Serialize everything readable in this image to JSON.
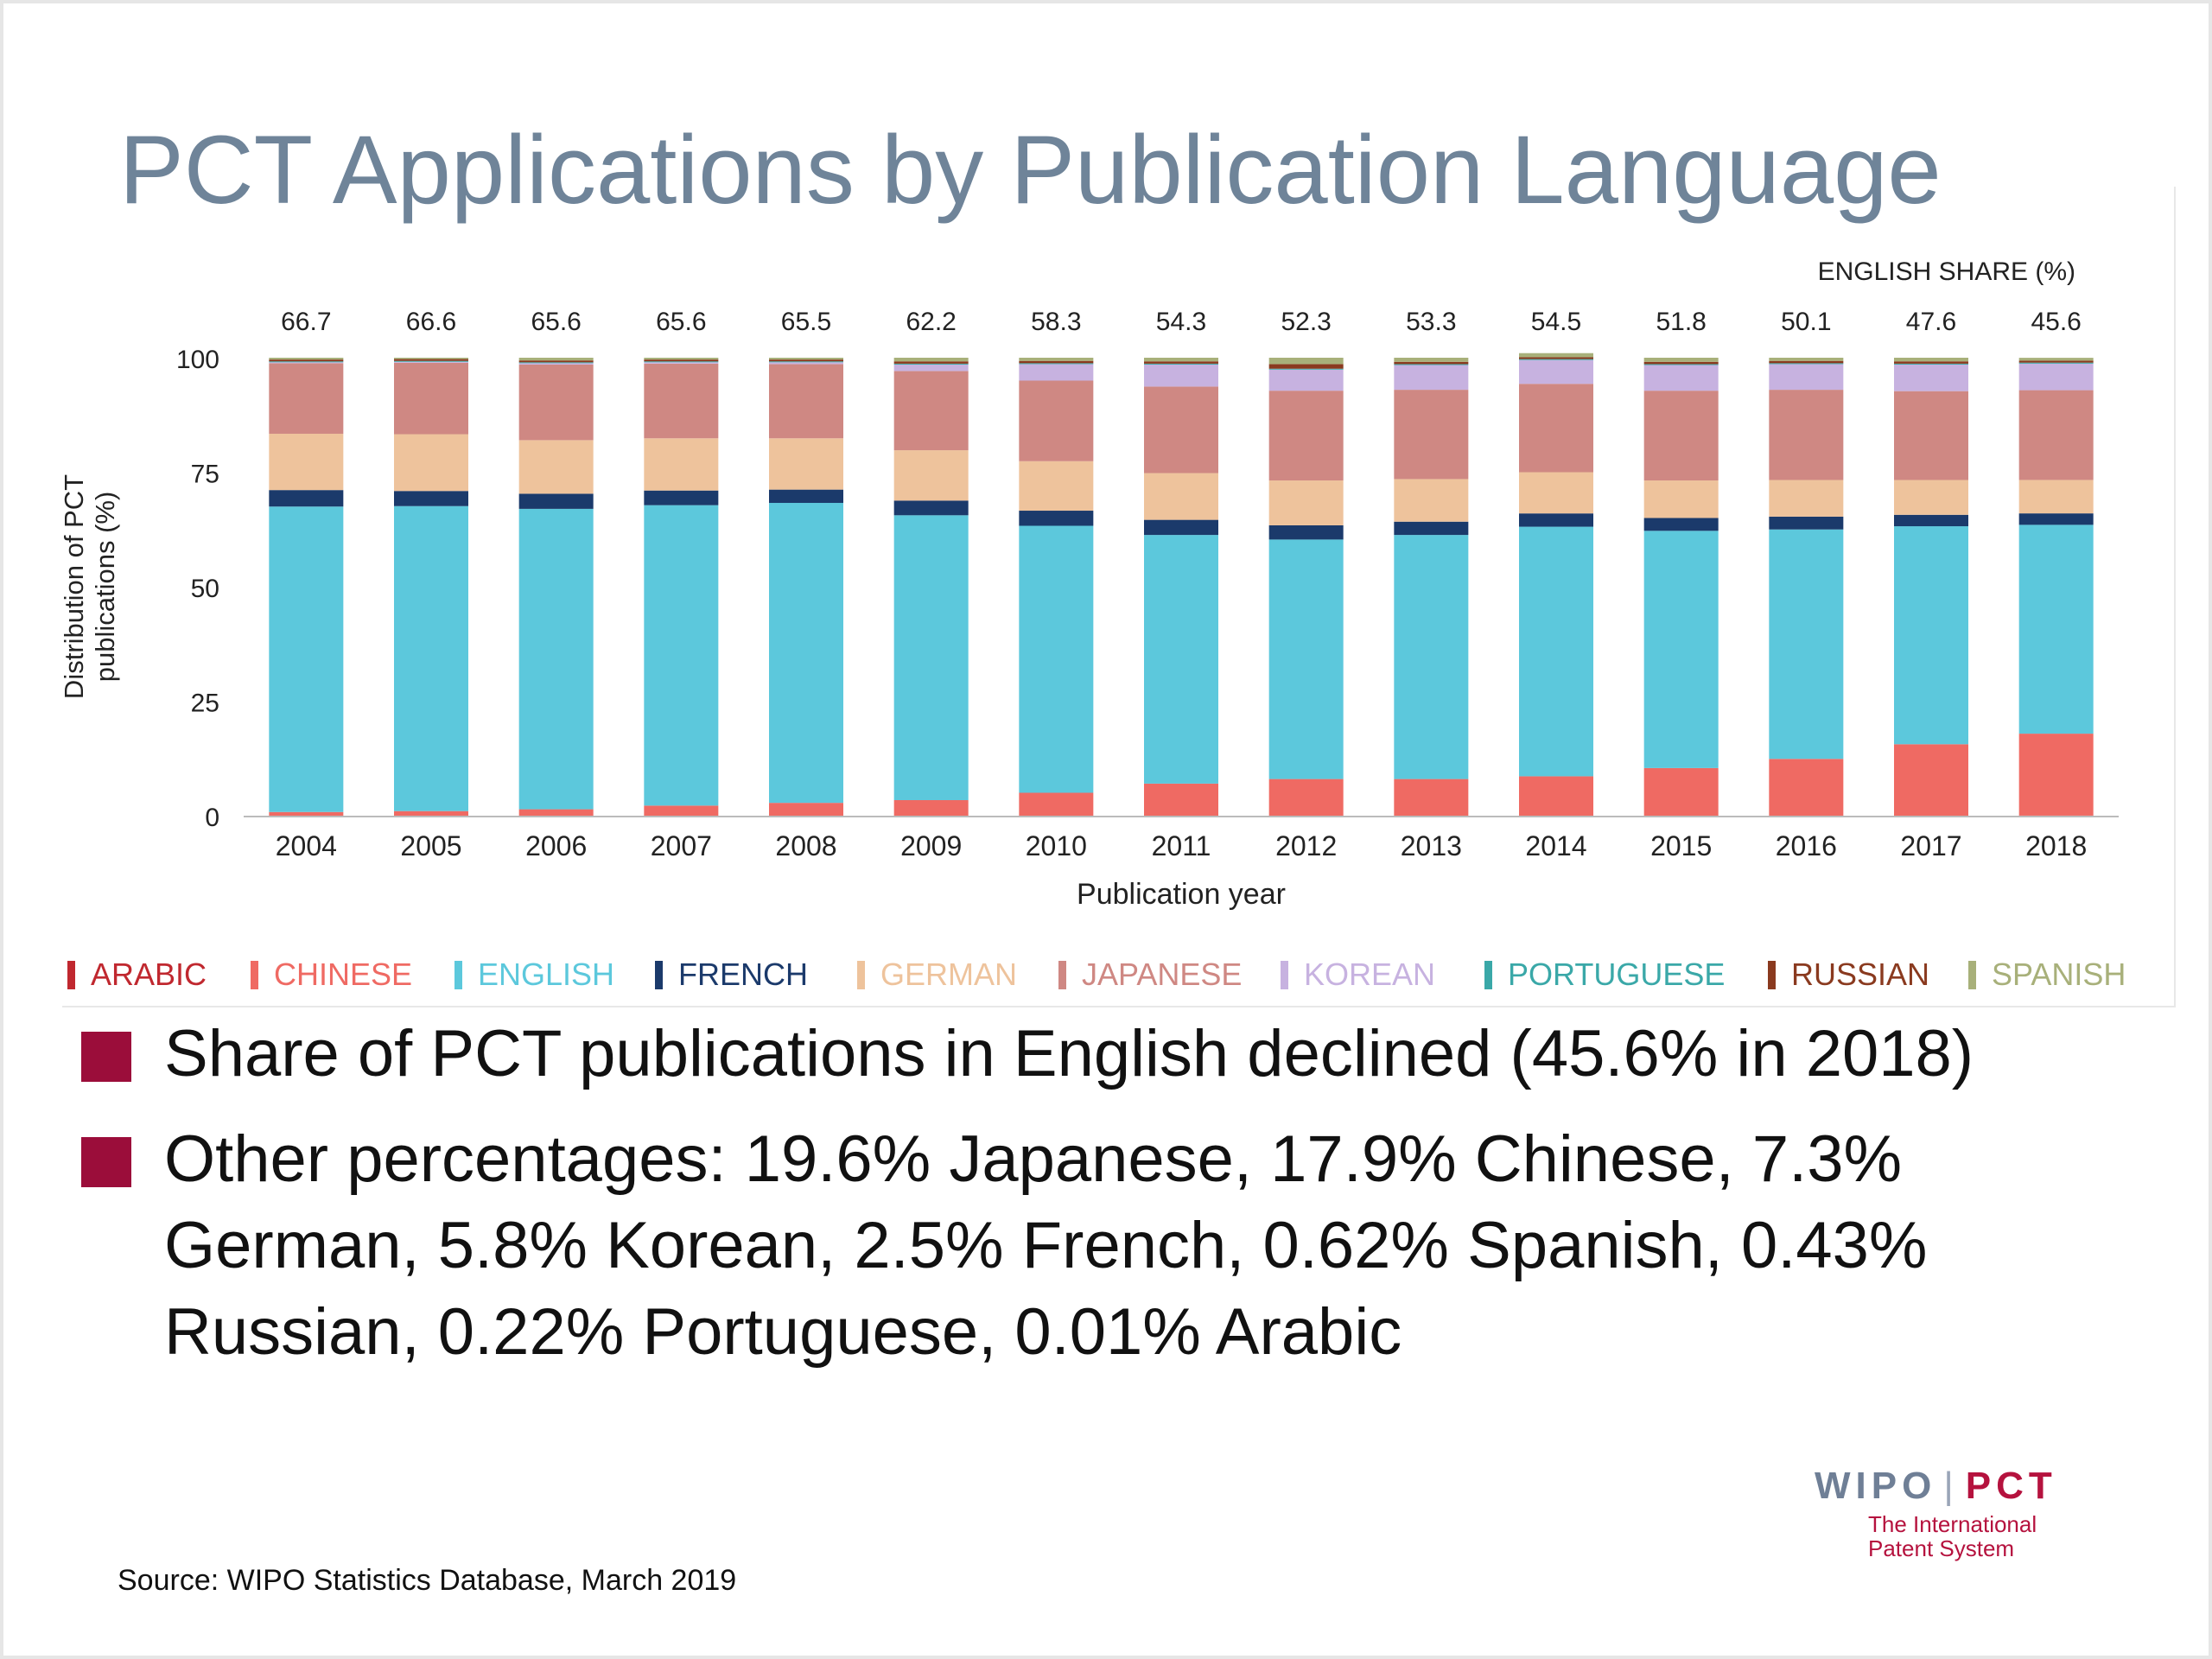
{
  "slide": {
    "title": "PCT Applications by Publication Language",
    "bullets": [
      "Share of PCT publications in English declined (45.6% in 2018)",
      "Other percentages: 19.6% Japanese, 17.9% Chinese, 7.3% German, 5.8% Korean, 2.5% French, 0.62% Spanish, 0.43% Russian, 0.22% Portuguese, 0.01% Arabic"
    ],
    "source": "Source:  WIPO Statistics Database, March 2019",
    "logo": {
      "wipo": "WIPO",
      "sep": "|",
      "pct": "PCT",
      "line1": "The International",
      "line2": "Patent System"
    },
    "colors": {
      "title": "#6f8499",
      "bullet": "#9b0d3a"
    }
  },
  "chart_data": {
    "type": "bar",
    "stacked": true,
    "ylabel": "Distribution of PCT publications (%)",
    "xlabel": "Publication year",
    "ylim": [
      0,
      100
    ],
    "yticks": [
      0,
      25,
      50,
      75,
      100
    ],
    "grid": false,
    "legend_position": "bottom",
    "annotation_title": "ENGLISH SHARE (%)",
    "english_share": [
      "66.7",
      "66.6",
      "65.6",
      "65.6",
      "65.5",
      "62.2",
      "58.3",
      "54.3",
      "52.3",
      "53.3",
      "54.5",
      "51.8",
      "50.1",
      "47.6",
      "45.6"
    ],
    "categories": [
      "2004",
      "2005",
      "2006",
      "2007",
      "2008",
      "2009",
      "2010",
      "2011",
      "2012",
      "2013",
      "2014",
      "2015",
      "2016",
      "2017",
      "2018"
    ],
    "series": [
      {
        "name": "ARABIC",
        "color": "#c0282f",
        "values": [
          0.0,
          0.0,
          0.0,
          0.0,
          0.0,
          0.0,
          0.0,
          0.0,
          0.0,
          0.0,
          0.0,
          0.0,
          0.0,
          0.0,
          0.01
        ]
      },
      {
        "name": "CHINESE",
        "color": "#ef6a63",
        "values": [
          0.8,
          1.0,
          1.4,
          2.2,
          2.8,
          3.4,
          5.0,
          7.0,
          8.0,
          8.0,
          8.6,
          10.4,
          12.4,
          15.6,
          17.9
        ]
      },
      {
        "name": "ENGLISH",
        "color": "#5cc8dc",
        "values": [
          66.7,
          66.6,
          65.6,
          65.6,
          65.5,
          62.2,
          58.3,
          54.3,
          52.3,
          53.3,
          54.5,
          51.8,
          50.1,
          47.6,
          45.6
        ]
      },
      {
        "name": "FRENCH",
        "color": "#1b3a6b",
        "values": [
          3.6,
          3.3,
          3.3,
          3.2,
          2.9,
          3.2,
          3.3,
          3.3,
          3.1,
          2.9,
          2.9,
          2.8,
          2.8,
          2.5,
          2.5
        ]
      },
      {
        "name": "GERMAN",
        "color": "#eec39c",
        "values": [
          12.3,
          12.4,
          11.7,
          11.4,
          11.2,
          11.0,
          10.8,
          10.2,
          9.8,
          9.3,
          9.0,
          8.2,
          8.0,
          7.6,
          7.3
        ]
      },
      {
        "name": "JAPANESE",
        "color": "#cf8883",
        "values": [
          15.4,
          15.6,
          16.5,
          16.3,
          16.2,
          17.3,
          17.6,
          18.9,
          19.6,
          19.5,
          19.3,
          19.6,
          19.7,
          19.4,
          19.6
        ]
      },
      {
        "name": "KOREAN",
        "color": "#c7b2e0",
        "values": [
          0.2,
          0.2,
          0.3,
          0.3,
          0.4,
          1.4,
          3.6,
          4.8,
          4.6,
          5.4,
          5.2,
          5.6,
          5.6,
          5.8,
          5.8
        ]
      },
      {
        "name": "PORTUGUESE",
        "color": "#3aa8a8",
        "values": [
          0.2,
          0.2,
          0.2,
          0.2,
          0.2,
          0.2,
          0.2,
          0.2,
          0.2,
          0.2,
          0.2,
          0.2,
          0.2,
          0.2,
          0.22
        ]
      },
      {
        "name": "RUSSIAN",
        "color": "#8a3a1f",
        "values": [
          0.4,
          0.4,
          0.4,
          0.4,
          0.4,
          0.5,
          0.5,
          0.5,
          1.0,
          0.5,
          0.4,
          0.5,
          0.5,
          0.5,
          0.43
        ]
      },
      {
        "name": "SPANISH",
        "color": "#a8b07a",
        "values": [
          0.4,
          0.3,
          0.6,
          0.4,
          0.4,
          0.8,
          0.7,
          0.8,
          1.4,
          0.9,
          0.9,
          0.9,
          0.7,
          0.8,
          0.62
        ]
      }
    ]
  }
}
